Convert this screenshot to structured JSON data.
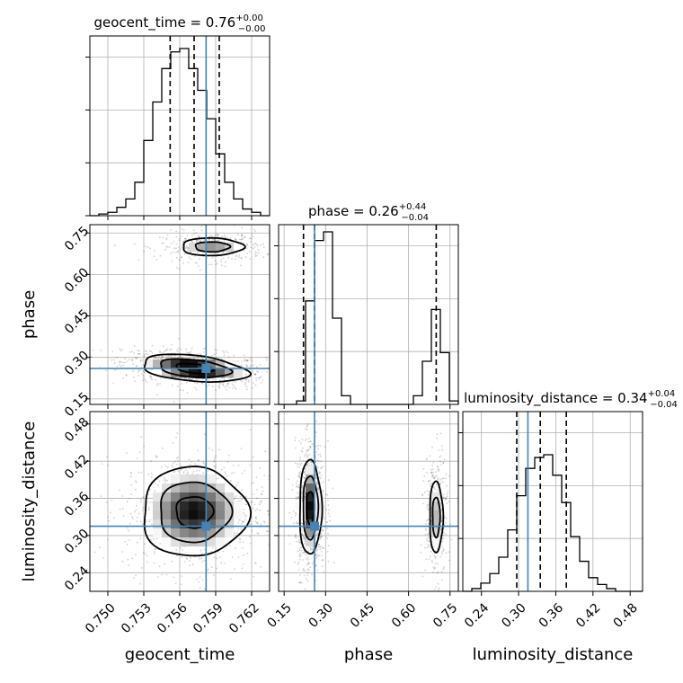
{
  "chart_data": {
    "type": "corner",
    "grid": true,
    "truth_color": "#4682b4",
    "params": [
      {
        "key": "geocent_time",
        "label": "geocent_time",
        "range": [
          0.7485,
          0.7635
        ],
        "ticks": [
          0.75,
          0.753,
          0.756,
          0.759,
          0.762
        ],
        "tick_labels": [
          "0.750",
          "0.753",
          "0.756",
          "0.759",
          "0.762"
        ],
        "truth": 0.7582,
        "quantiles": [
          0.7552,
          0.7572,
          0.7593
        ],
        "title_prefix": "geocent_time = 0.76",
        "title_plus": "+0.00",
        "title_minus": "−0.00",
        "hist_bins": [
          0.7485,
          0.7635,
          20
        ],
        "hist": [
          0.0,
          0.01,
          0.02,
          0.05,
          0.1,
          0.2,
          0.45,
          0.68,
          0.88,
          0.98,
          1.0,
          0.88,
          0.75,
          0.58,
          0.37,
          0.2,
          0.1,
          0.04,
          0.02,
          0.0
        ]
      },
      {
        "key": "phase",
        "label": "phase",
        "range": [
          0.13,
          0.78
        ],
        "ticks": [
          0.15,
          0.3,
          0.45,
          0.6,
          0.75
        ],
        "tick_labels": [
          "0.15",
          "0.30",
          "0.45",
          "0.60",
          "0.75"
        ],
        "truth": 0.26,
        "quantiles": [
          0.22,
          0.26,
          0.7
        ],
        "title_prefix": "phase = 0.26",
        "title_plus": "+0.44",
        "title_minus": "−0.04",
        "hist_bins": [
          0.13,
          0.78,
          20
        ],
        "hist": [
          0.0,
          0.0,
          0.02,
          0.6,
          0.95,
          1.0,
          0.5,
          0.05,
          0.0,
          0.0,
          0.0,
          0.0,
          0.0,
          0.0,
          0.0,
          0.05,
          0.25,
          0.55,
          0.3,
          0.02
        ]
      },
      {
        "key": "luminosity_distance",
        "label": "luminosity_distance",
        "range": [
          0.21,
          0.5
        ],
        "ticks": [
          0.24,
          0.3,
          0.36,
          0.42,
          0.48
        ],
        "tick_labels": [
          "0.24",
          "0.30",
          "0.36",
          "0.42",
          "0.48"
        ],
        "truth": 0.315,
        "quantiles": [
          0.297,
          0.335,
          0.377
        ],
        "title_prefix": "luminosity_distance = 0.34",
        "title_plus": "+0.04",
        "title_minus": "−0.04",
        "hist_bins": [
          0.21,
          0.5,
          20
        ],
        "hist": [
          0.0,
          0.02,
          0.06,
          0.13,
          0.25,
          0.45,
          0.7,
          0.9,
          0.98,
          1.0,
          0.85,
          0.65,
          0.4,
          0.22,
          0.1,
          0.05,
          0.02,
          0.0,
          0.0,
          0.0
        ]
      }
    ],
    "histogram_yticks": [
      0,
      1,
      2,
      3
    ],
    "hist_max": 3.4,
    "blobs": [
      {
        "px": 0,
        "py": 1,
        "cx": 0.7572,
        "cy": 0.26,
        "sx": 0.0022,
        "sy": 0.025,
        "rho": -0.35,
        "weight": 1.0
      },
      {
        "px": 0,
        "py": 1,
        "cx": 0.7587,
        "cy": 0.7,
        "sx": 0.0016,
        "sy": 0.02,
        "rho": 0.0,
        "weight": 0.45
      },
      {
        "px": 0,
        "py": 2,
        "cx": 0.7572,
        "cy": 0.338,
        "sx": 0.0022,
        "sy": 0.036,
        "rho": 0.0,
        "weight": 1.0
      },
      {
        "px": 1,
        "py": 2,
        "cx": 0.245,
        "cy": 0.345,
        "sx": 0.02,
        "sy": 0.038,
        "rho": 0.0,
        "weight": 1.0
      },
      {
        "px": 1,
        "py": 2,
        "cx": 0.7,
        "cy": 0.33,
        "sx": 0.015,
        "sy": 0.036,
        "rho": 0.0,
        "weight": 0.45
      }
    ]
  }
}
